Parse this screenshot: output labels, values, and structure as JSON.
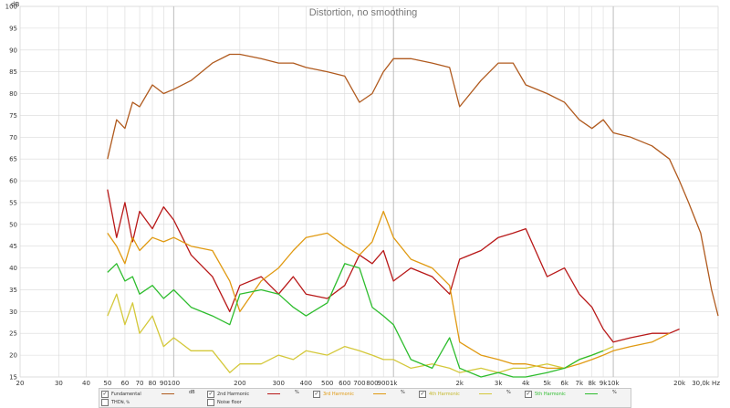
{
  "chart_data": {
    "type": "line",
    "title": "Distortion, no smoothing",
    "x_scale": "log",
    "xlim": [
      20,
      30000
    ],
    "ylim": [
      15,
      100
    ],
    "y_unit_label": "dB",
    "x_unit_label": "30,0k Hz",
    "x_ticks": [
      {
        "v": 20,
        "label": "20"
      },
      {
        "v": 30,
        "label": "30"
      },
      {
        "v": 40,
        "label": "40"
      },
      {
        "v": 50,
        "label": "50"
      },
      {
        "v": 60,
        "label": "60"
      },
      {
        "v": 70,
        "label": "70"
      },
      {
        "v": 80,
        "label": "80"
      },
      {
        "v": 90,
        "label": "90"
      },
      {
        "v": 100,
        "label": "100"
      },
      {
        "v": 200,
        "label": "200"
      },
      {
        "v": 300,
        "label": "300"
      },
      {
        "v": 400,
        "label": "400"
      },
      {
        "v": 500,
        "label": "500"
      },
      {
        "v": 600,
        "label": "600"
      },
      {
        "v": 700,
        "label": "700"
      },
      {
        "v": 800,
        "label": "800"
      },
      {
        "v": 900,
        "label": "900"
      },
      {
        "v": 1000,
        "label": "1k"
      },
      {
        "v": 2000,
        "label": "2k"
      },
      {
        "v": 3000,
        "label": "3k"
      },
      {
        "v": 4000,
        "label": "4k"
      },
      {
        "v": 5000,
        "label": "5k"
      },
      {
        "v": 6000,
        "label": "6k"
      },
      {
        "v": 7000,
        "label": "7k"
      },
      {
        "v": 8000,
        "label": "8k"
      },
      {
        "v": 9000,
        "label": "9k"
      },
      {
        "v": 10000,
        "label": "10k"
      },
      {
        "v": 20000,
        "label": "20k"
      }
    ],
    "y_ticks": [
      15,
      20,
      25,
      30,
      35,
      40,
      45,
      50,
      55,
      60,
      65,
      70,
      75,
      80,
      85,
      90,
      95,
      100
    ],
    "grid": true,
    "legend_position": "bottom",
    "series": [
      {
        "name": "Fundamental",
        "color": "#b05a1e",
        "unit": "dB",
        "x": [
          50,
          55,
          60,
          65,
          70,
          80,
          90,
          100,
          120,
          150,
          180,
          200,
          250,
          300,
          350,
          400,
          500,
          600,
          700,
          800,
          900,
          1000,
          1200,
          1500,
          1800,
          2000,
          2500,
          3000,
          3500,
          4000,
          5000,
          6000,
          7000,
          8000,
          9000,
          10000,
          12000,
          15000,
          18000,
          20000,
          22000,
          25000,
          28000,
          30000
        ],
        "y": [
          65,
          74,
          72,
          78,
          77,
          82,
          80,
          81,
          83,
          87,
          89,
          89,
          88,
          87,
          87,
          86,
          85,
          84,
          78,
          80,
          85,
          88,
          88,
          87,
          86,
          77,
          83,
          87,
          87,
          82,
          80,
          78,
          74,
          72,
          74,
          71,
          70,
          68,
          65,
          60,
          55,
          48,
          35,
          29
        ]
      },
      {
        "name": "2nd Harmonic",
        "color": "#b81818",
        "unit": "%",
        "x": [
          50,
          55,
          60,
          65,
          70,
          80,
          90,
          100,
          120,
          150,
          180,
          200,
          250,
          300,
          350,
          400,
          500,
          600,
          700,
          800,
          900,
          1000,
          1200,
          1500,
          1800,
          2000,
          2500,
          3000,
          3500,
          4000,
          5000,
          6000,
          7000,
          8000,
          9000,
          10000,
          12000,
          15000,
          18000,
          20000
        ],
        "y": [
          58,
          47,
          55,
          46,
          53,
          49,
          54,
          51,
          43,
          38,
          30,
          36,
          38,
          34,
          38,
          34,
          33,
          36,
          43,
          41,
          44,
          37,
          40,
          38,
          34,
          42,
          44,
          47,
          48,
          49,
          38,
          40,
          34,
          31,
          26,
          23,
          24,
          25,
          25,
          26
        ]
      },
      {
        "name": "3rd Harmonic",
        "color": "#e09a12",
        "unit": "%",
        "x": [
          50,
          55,
          60,
          65,
          70,
          80,
          90,
          100,
          120,
          150,
          180,
          200,
          250,
          300,
          350,
          400,
          500,
          600,
          700,
          800,
          900,
          1000,
          1200,
          1500,
          1800,
          2000,
          2500,
          3000,
          3500,
          4000,
          5000,
          6000,
          7000,
          8000,
          9000,
          10000,
          12000,
          15000,
          18000
        ],
        "y": [
          48,
          45,
          41,
          47,
          44,
          47,
          46,
          47,
          45,
          44,
          37,
          30,
          37,
          40,
          44,
          47,
          48,
          45,
          43,
          46,
          53,
          47,
          42,
          40,
          36,
          23,
          20,
          19,
          18,
          18,
          17,
          17,
          18,
          19,
          20,
          21,
          22,
          23,
          25
        ]
      },
      {
        "name": "4th Harmonic",
        "color": "#d4c83a",
        "unit": "%",
        "x": [
          50,
          55,
          60,
          65,
          70,
          80,
          90,
          100,
          120,
          150,
          180,
          200,
          250,
          300,
          350,
          400,
          500,
          600,
          700,
          800,
          900,
          1000,
          1200,
          1500,
          1800,
          2000,
          2500,
          3000,
          3500,
          4000,
          5000,
          6000,
          7000,
          8000,
          9000,
          10000
        ],
        "y": [
          29,
          34,
          27,
          32,
          25,
          29,
          22,
          24,
          21,
          21,
          16,
          18,
          18,
          20,
          19,
          21,
          20,
          22,
          21,
          20,
          19,
          19,
          17,
          18,
          17,
          16,
          17,
          16,
          17,
          17,
          18,
          17,
          19,
          20,
          21,
          22
        ]
      },
      {
        "name": "5th Harmonic",
        "color": "#2ebd2e",
        "unit": "%",
        "x": [
          50,
          55,
          60,
          65,
          70,
          80,
          90,
          100,
          120,
          150,
          180,
          200,
          250,
          300,
          350,
          400,
          500,
          600,
          700,
          800,
          900,
          1000,
          1200,
          1500,
          1800,
          2000,
          2500,
          3000,
          3500,
          4000,
          5000,
          6000,
          7000,
          8000,
          9000
        ],
        "y": [
          39,
          41,
          37,
          38,
          34,
          36,
          33,
          35,
          31,
          29,
          27,
          34,
          35,
          34,
          31,
          29,
          32,
          41,
          40,
          31,
          29,
          27,
          19,
          17,
          24,
          17,
          15,
          16,
          15,
          15,
          16,
          17,
          19,
          20,
          21
        ]
      }
    ]
  },
  "legend": [
    {
      "label": "Fundamental",
      "unit": "dB",
      "checked": true,
      "color": "#b05a1e"
    },
    {
      "label": "2nd Harmonic",
      "unit": "%",
      "checked": true,
      "color": "#b81818"
    },
    {
      "label": "3rd Harmonic",
      "unit": "%",
      "checked": true,
      "color": "#e09a12"
    },
    {
      "label": "4th Harmonic",
      "unit": "%",
      "checked": true,
      "color": "#d4c83a"
    },
    {
      "label": "5th Harmonic",
      "unit": "%",
      "checked": true,
      "color": "#2ebd2e"
    }
  ],
  "legend_extra": [
    {
      "label": "THD",
      "sub": "N, %",
      "checked": false
    },
    {
      "label": "Noise floor",
      "checked": false
    }
  ]
}
